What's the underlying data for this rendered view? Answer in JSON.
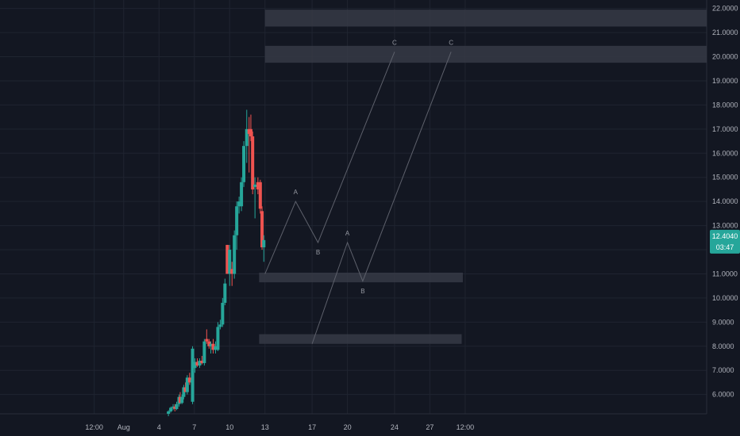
{
  "colors": {
    "background": "#131722",
    "grid": "#1f2430",
    "up": "#26a69a",
    "down": "#ef5350",
    "zone": "#363a45",
    "wave_line": "#5d606b",
    "price_tag": "#26a69a",
    "axis_text": "#b2b5be"
  },
  "chart_data": {
    "type": "candlestick",
    "price_axis": {
      "ylim": [
        5.2,
        22.35
      ],
      "ticks": [
        "6.0000",
        "7.0000",
        "8.0000",
        "9.0000",
        "10.0000",
        "11.0000",
        "12.0000",
        "13.0000",
        "14.0000",
        "15.0000",
        "16.0000",
        "17.0000",
        "18.0000",
        "19.0000",
        "20.0000",
        "21.0000",
        "22.0000"
      ]
    },
    "time_axis": {
      "xlim": [
        -10.5,
        49.5
      ],
      "ticks": [
        {
          "t": -2.5,
          "label": "12:00"
        },
        {
          "t": 0,
          "label": "Aug"
        },
        {
          "t": 3,
          "label": "4"
        },
        {
          "t": 6,
          "label": "7"
        },
        {
          "t": 9,
          "label": "10"
        },
        {
          "t": 12,
          "label": "13"
        },
        {
          "t": 16,
          "label": "17"
        },
        {
          "t": 19,
          "label": "20"
        },
        {
          "t": 23,
          "label": "24"
        },
        {
          "t": 26,
          "label": "27"
        },
        {
          "t": 29,
          "label": "12:00"
        }
      ]
    },
    "grid": true,
    "current_price": {
      "label": "12.4040",
      "countdown": "03:47",
      "value": 12.4
    }
  },
  "candles": [
    [
      3.8,
      5.2,
      5.35,
      5.1,
      5.3
    ],
    [
      4.0,
      5.3,
      5.5,
      5.25,
      5.45
    ],
    [
      4.2,
      5.45,
      5.6,
      5.35,
      5.5
    ],
    [
      4.35,
      5.5,
      5.6,
      5.3,
      5.4
    ],
    [
      4.5,
      5.4,
      5.7,
      5.35,
      5.6
    ],
    [
      4.7,
      5.6,
      6.0,
      5.5,
      5.9
    ],
    [
      4.8,
      5.9,
      6.1,
      5.75,
      5.65
    ],
    [
      4.95,
      5.65,
      6.0,
      5.6,
      5.9
    ],
    [
      5.1,
      5.9,
      6.4,
      5.8,
      6.3
    ],
    [
      5.25,
      6.3,
      6.5,
      6.2,
      6.1
    ],
    [
      5.4,
      6.1,
      6.8,
      6.0,
      6.7
    ],
    [
      5.6,
      6.7,
      6.9,
      6.4,
      6.5
    ],
    [
      5.8,
      6.5,
      6.7,
      6.4,
      6.6
    ],
    [
      5.85,
      5.7,
      8.0,
      5.6,
      7.9
    ],
    [
      6.05,
      7.1,
      7.5,
      6.9,
      7.35
    ],
    [
      6.25,
      7.35,
      7.5,
      7.15,
      7.2
    ],
    [
      6.45,
      7.2,
      7.5,
      7.1,
      7.4
    ],
    [
      6.65,
      7.4,
      7.6,
      7.25,
      7.3
    ],
    [
      6.85,
      7.3,
      8.3,
      7.2,
      8.2
    ],
    [
      7.05,
      8.3,
      8.7,
      8.1,
      8.2
    ],
    [
      7.25,
      8.2,
      8.3,
      7.9,
      8.0
    ],
    [
      7.4,
      8.0,
      8.2,
      7.7,
      8.1
    ],
    [
      7.6,
      8.1,
      8.3,
      7.7,
      7.85
    ],
    [
      7.8,
      7.85,
      8.2,
      7.7,
      8.0
    ],
    [
      8.0,
      7.85,
      9.0,
      7.8,
      8.8
    ],
    [
      8.2,
      8.8,
      9.1,
      8.7,
      8.9
    ],
    [
      8.4,
      8.9,
      10.0,
      8.8,
      9.8
    ],
    [
      8.6,
      9.8,
      10.8,
      9.7,
      10.6
    ],
    [
      8.8,
      12.2,
      12.2,
      11.0,
      11.0
    ],
    [
      9.0,
      11.0,
      12.2,
      10.5,
      12.0
    ],
    [
      9.2,
      11.2,
      11.5,
      10.5,
      11.0
    ],
    [
      9.4,
      11.0,
      12.8,
      10.8,
      12.6
    ],
    [
      9.6,
      12.6,
      14.0,
      12.0,
      13.8
    ],
    [
      9.8,
      13.8,
      14.2,
      13.5,
      14.0
    ],
    [
      10.0,
      13.8,
      15.0,
      13.6,
      14.8
    ],
    [
      10.2,
      14.8,
      16.5,
      14.6,
      16.3
    ],
    [
      10.45,
      16.3,
      17.8,
      15.6,
      17.0
    ],
    [
      10.65,
      17.0,
      17.5,
      15.2,
      16.8
    ],
    [
      10.8,
      17.0,
      17.6,
      16.5,
      16.7
    ],
    [
      10.95,
      16.7,
      16.9,
      14.3,
      14.5
    ],
    [
      11.15,
      14.6,
      15.0,
      13.3,
      14.7
    ],
    [
      11.4,
      14.8,
      15.0,
      14.3,
      14.5
    ],
    [
      11.6,
      14.8,
      14.9,
      13.5,
      13.7
    ],
    [
      11.75,
      13.6,
      13.8,
      12.0,
      12.1
    ],
    [
      11.9,
      12.1,
      12.6,
      11.5,
      12.4
    ]
  ],
  "zones": [
    {
      "t_start": 12.0,
      "t_end": 49.5,
      "y_low": 21.25,
      "y_high": 21.95
    },
    {
      "t_start": 12.0,
      "t_end": 49.5,
      "y_low": 19.75,
      "y_high": 20.45
    },
    {
      "t_start": 11.5,
      "t_end": 28.8,
      "y_low": 10.65,
      "y_high": 11.05
    },
    {
      "t_start": 11.5,
      "t_end": 28.7,
      "y_low": 8.1,
      "y_high": 8.5
    }
  ],
  "waves": [
    {
      "points": [
        [
          12.0,
          11.0
        ],
        [
          14.6,
          14.0
        ],
        [
          16.5,
          12.3
        ],
        [
          23.0,
          20.2
        ]
      ],
      "labels": [
        {
          "text": "A",
          "t": 14.6,
          "y": 14.3
        },
        {
          "text": "B",
          "t": 16.5,
          "y": 11.8
        },
        {
          "text": "C",
          "t": 23.0,
          "y": 20.5
        }
      ]
    },
    {
      "points": [
        [
          16.0,
          8.1
        ],
        [
          19.0,
          12.3
        ],
        [
          20.3,
          10.7
        ],
        [
          27.8,
          20.2
        ]
      ],
      "labels": [
        {
          "text": "A",
          "t": 19.0,
          "y": 12.6
        },
        {
          "text": "B",
          "t": 20.3,
          "y": 10.2
        },
        {
          "text": "C",
          "t": 27.8,
          "y": 20.5
        }
      ]
    }
  ]
}
